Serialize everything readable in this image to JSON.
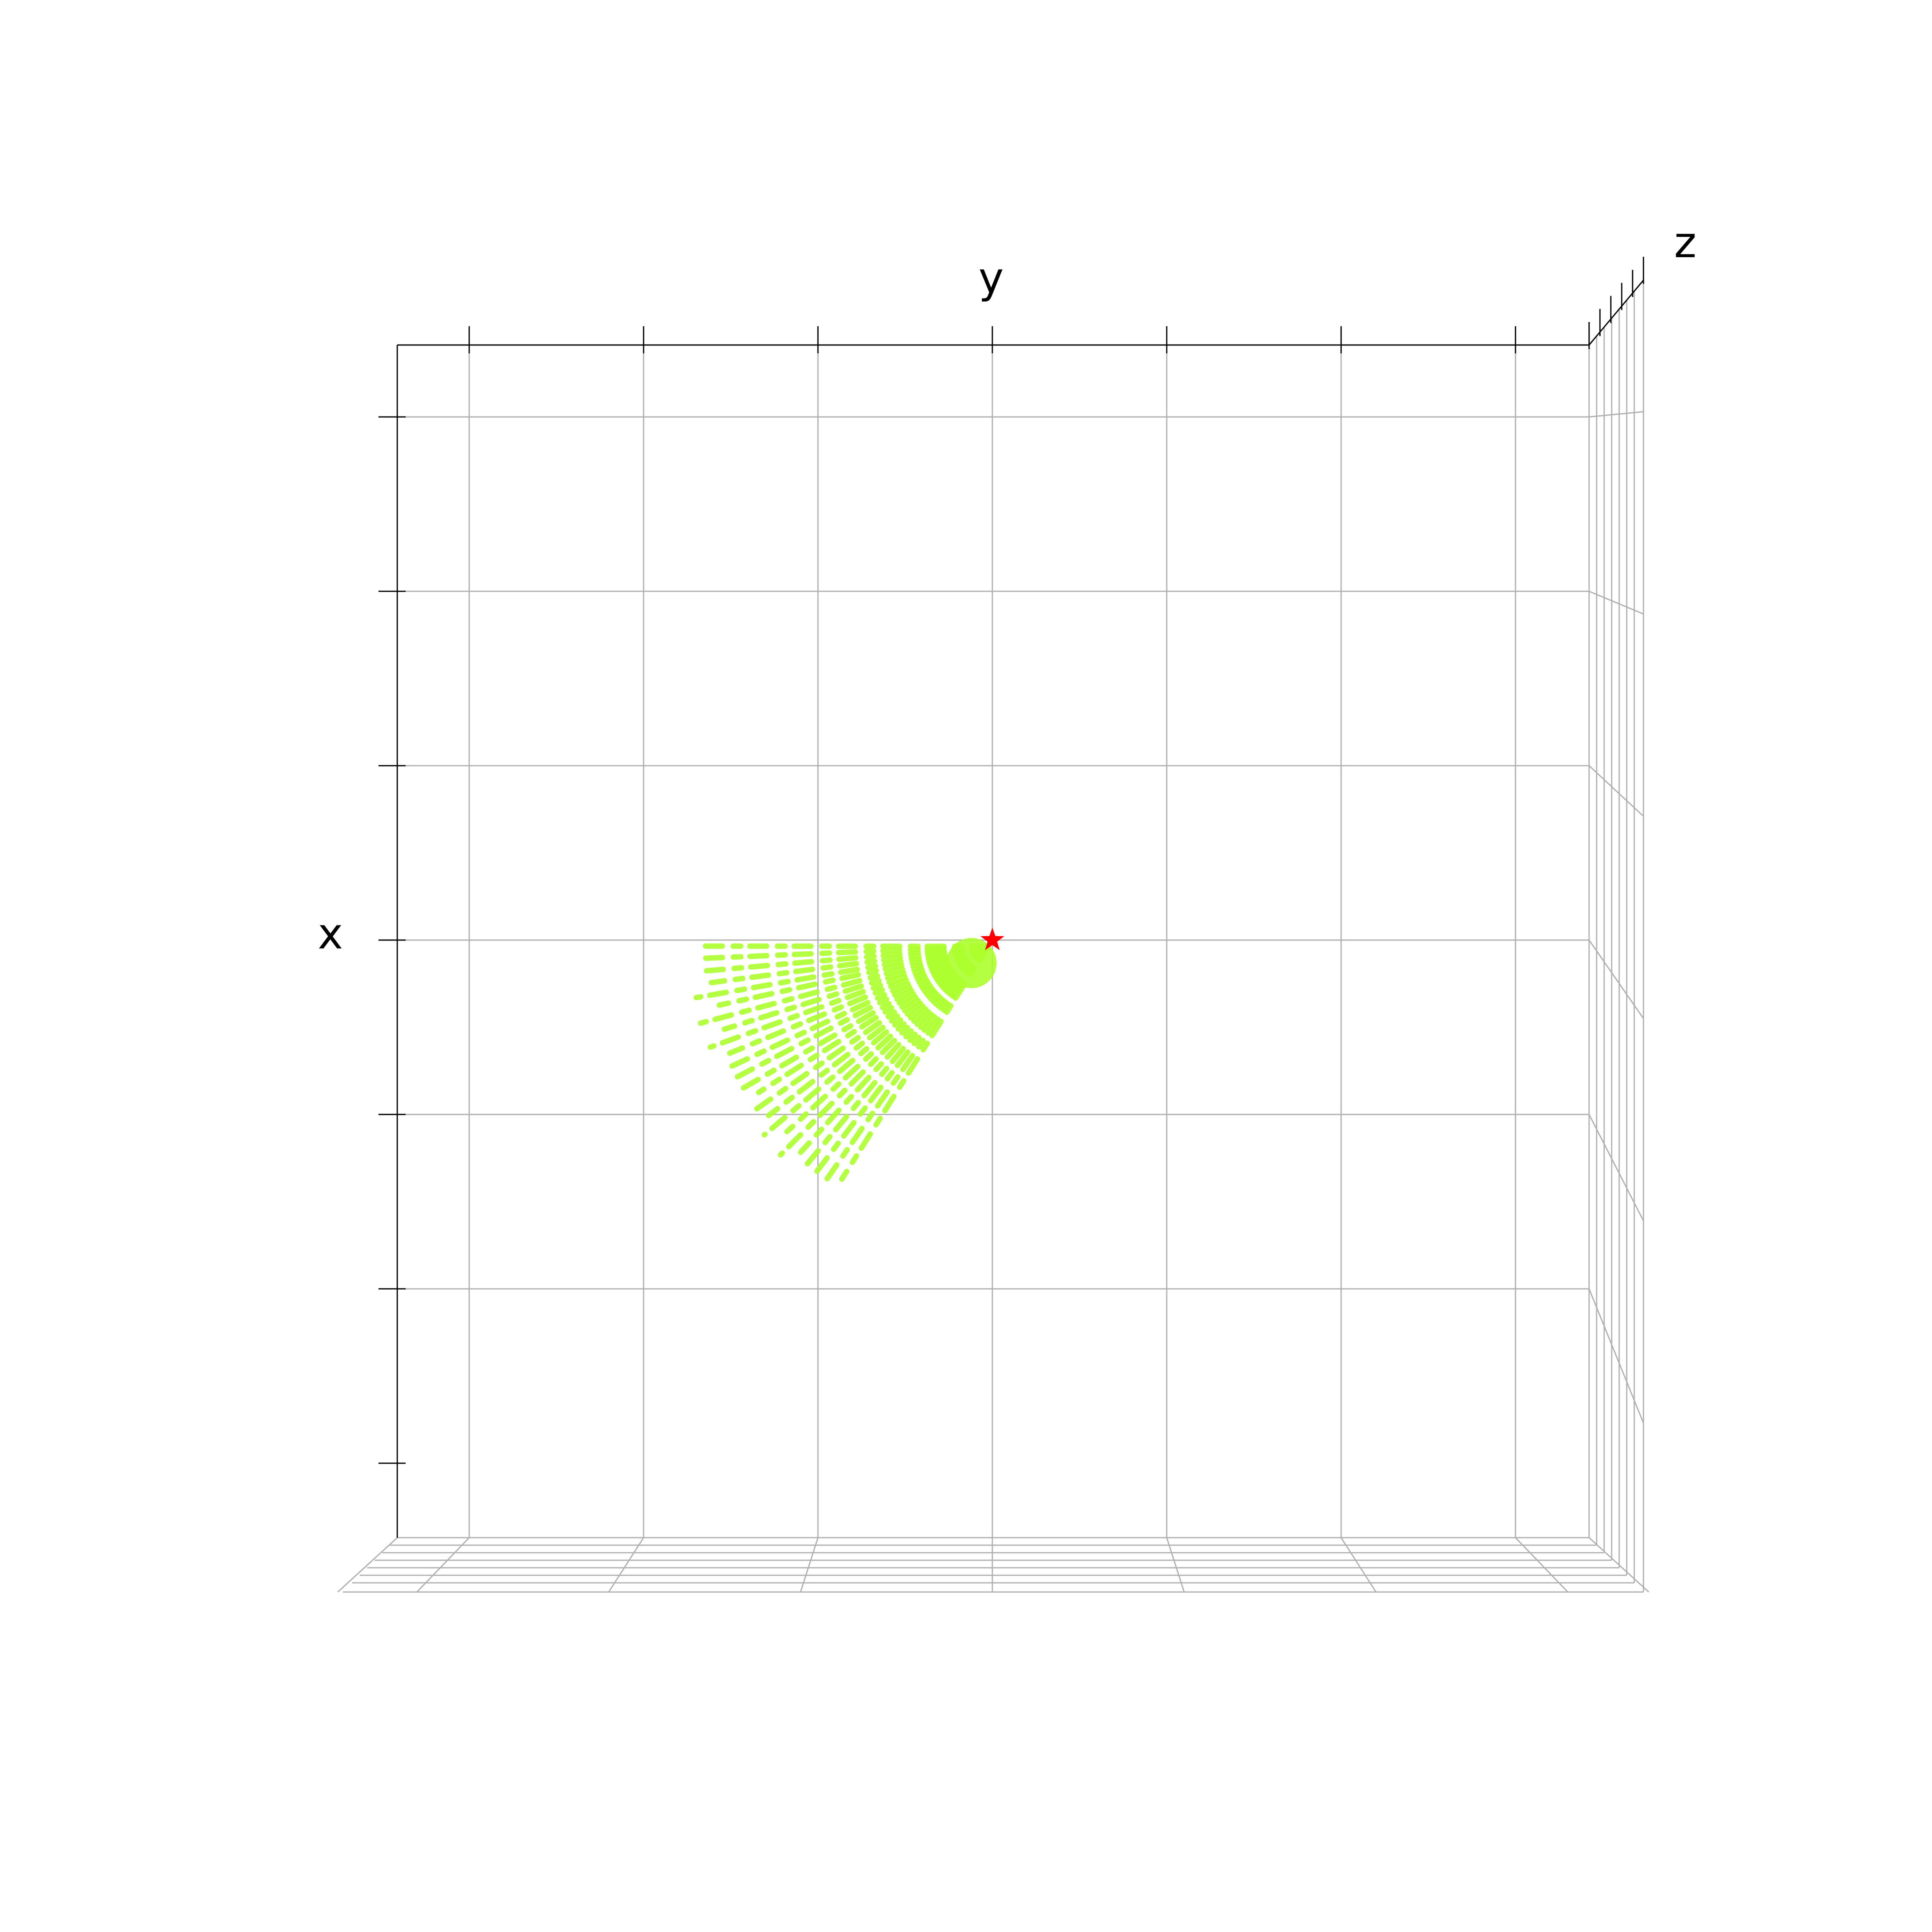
{
  "chart_data": {
    "type": "scatter",
    "projection": "3d",
    "axes": {
      "x": {
        "label": "x",
        "ticks": 7,
        "tick_labels": false
      },
      "y": {
        "label": "y",
        "ticks": 7,
        "tick_labels": false
      },
      "z": {
        "label": "z",
        "ticks": 6,
        "tick_labels": false
      }
    },
    "grid": true,
    "origin": {
      "marker": "star",
      "color": "#ff0000",
      "x": 0,
      "y": 0
    },
    "rays": {
      "color": "#adff2f",
      "count": 24,
      "angles_deg": [
        1.2,
        3.6,
        6.1,
        8.6,
        11.0,
        13.4,
        15.9,
        18.4,
        20.8,
        23.3,
        25.8,
        28.2,
        30.7,
        33.1,
        35.6,
        38.1,
        40.5,
        43.0,
        45.4,
        47.9,
        50.4,
        52.8,
        55.3,
        57.8
      ],
      "lengths": [
        1.65,
        1.68,
        1.7,
        1.63,
        1.73,
        1.61,
        1.74,
        1.62,
        1.73,
        1.64,
        1.71,
        1.66,
        1.69,
        1.6,
        1.7,
        1.63,
        1.72,
        1.61,
        1.73,
        1.64,
        1.71,
        1.67,
        1.7,
        1.62
      ]
    }
  }
}
